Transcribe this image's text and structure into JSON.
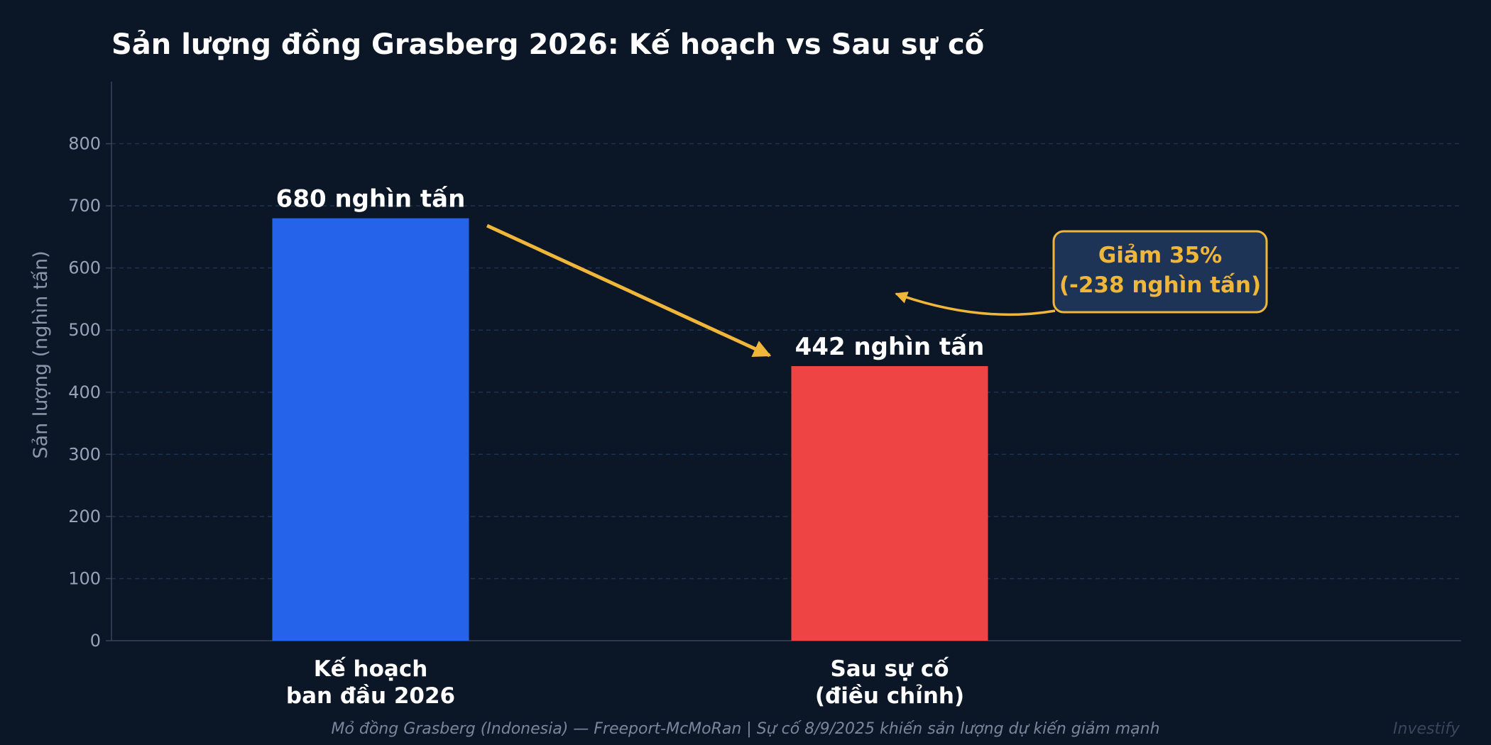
{
  "chart_data": {
    "type": "bar",
    "title": "Sản lượng đồng Grasberg 2026: Kế hoạch vs Sau sự cố",
    "ylabel": "Sản lượng (nghìn tấn)",
    "xlabel": "",
    "categories": [
      [
        "Kế hoạch",
        "ban đầu 2026"
      ],
      [
        "Sau sự cố",
        "(điều chỉnh)"
      ]
    ],
    "values": [
      680,
      442
    ],
    "data_labels": [
      "680 nghìn tấn",
      "442 nghìn tấn"
    ],
    "colors": [
      "#2563eb",
      "#ef4444"
    ],
    "ylim": [
      0,
      900
    ],
    "yticks": [
      0,
      100,
      200,
      300,
      400,
      500,
      600,
      700,
      800
    ],
    "grid": true,
    "annotation": {
      "lines": [
        "Giảm 35%",
        "(-238 nghìn tấn)"
      ],
      "color": "#f0b63a",
      "box_fill": "#1e3457"
    },
    "footer": "Mỏ đồng Grasberg (Indonesia) — Freeport-McMoRan | Sự cố 8/9/2025 khiến sản lượng dự kiến giảm mạnh",
    "watermark": "Investify"
  }
}
